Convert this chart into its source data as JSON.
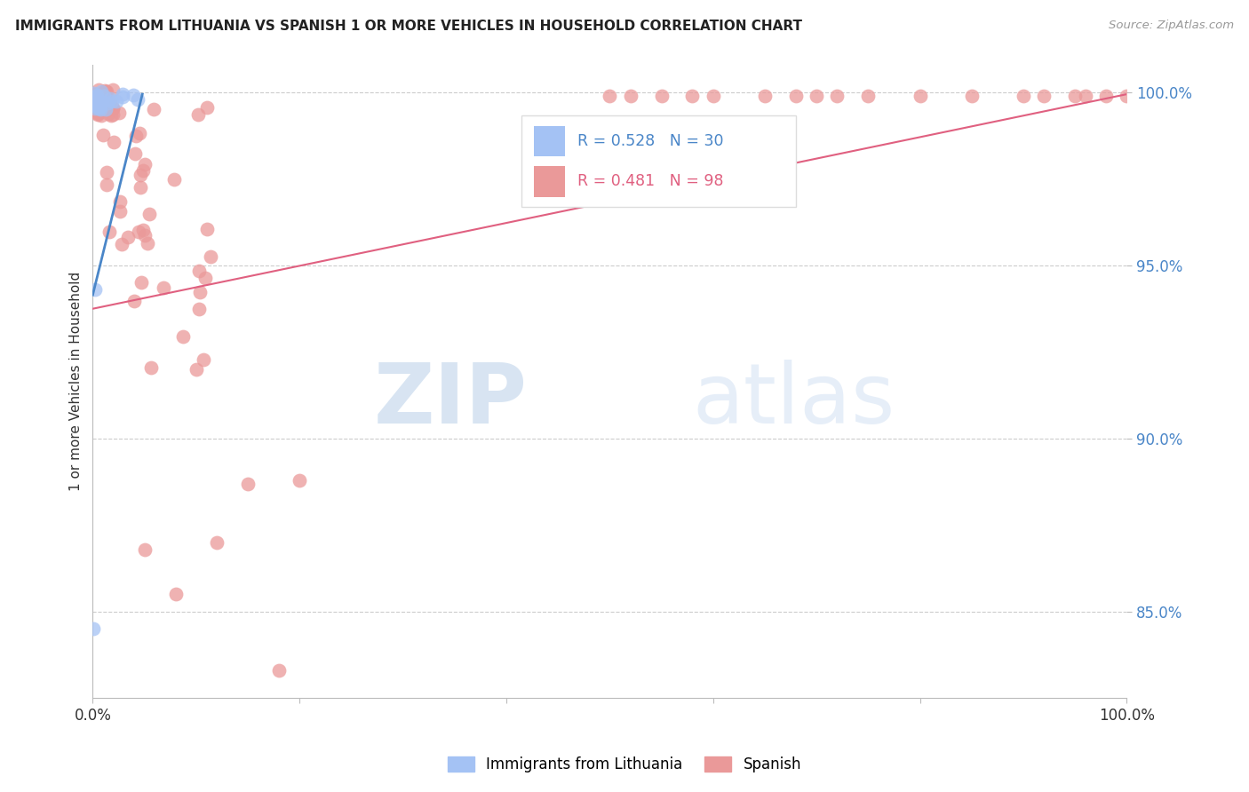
{
  "title": "IMMIGRANTS FROM LITHUANIA VS SPANISH 1 OR MORE VEHICLES IN HOUSEHOLD CORRELATION CHART",
  "source": "Source: ZipAtlas.com",
  "ylabel": "1 or more Vehicles in Household",
  "xlim": [
    0.0,
    1.0
  ],
  "ylim": [
    0.825,
    1.008
  ],
  "yticks": [
    0.85,
    0.9,
    0.95,
    1.0
  ],
  "ytick_labels": [
    "85.0%",
    "90.0%",
    "95.0%",
    "100.0%"
  ],
  "blue_color": "#4a86c8",
  "pink_color": "#e06080",
  "blue_scatter_color": "#a4c2f4",
  "pink_scatter_color": "#ea9999",
  "watermark_zip": "ZIP",
  "watermark_atlas": "atlas",
  "background_color": "#ffffff",
  "grid_color": "#cccccc",
  "blue_line_x0": 0.0,
  "blue_line_x1": 0.048,
  "blue_line_y0": 0.9415,
  "blue_line_y1": 0.9995,
  "pink_line_x0": 0.0,
  "pink_line_x1": 1.0,
  "pink_line_y0": 0.9375,
  "pink_line_y1": 0.9995,
  "legend_R_blue": "R = 0.528",
  "legend_N_blue": "N = 30",
  "legend_R_pink": "R = 0.481",
  "legend_N_pink": "N = 98",
  "legend_label_blue": "Immigrants from Lithuania",
  "legend_label_pink": "Spanish"
}
